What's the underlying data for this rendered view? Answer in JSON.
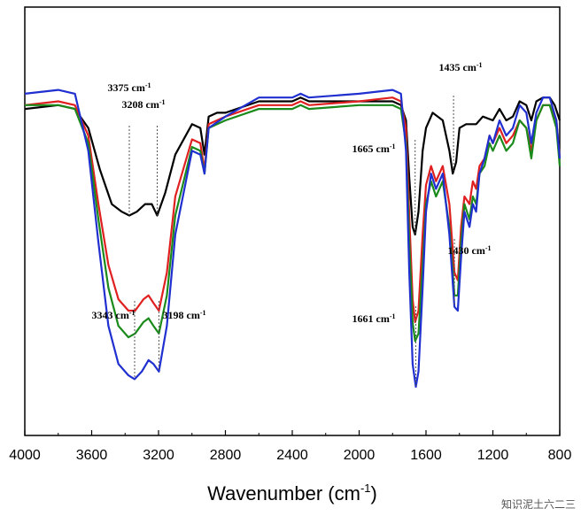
{
  "chart_data": {
    "type": "line",
    "xlabel": "Wavenumber (cm",
    "xlabel_sup": "-1",
    "xlabel_close": ")",
    "x_reversed": true,
    "xlim": [
      4000,
      800
    ],
    "xticks": [
      4000,
      3600,
      3200,
      2800,
      2400,
      2000,
      1600,
      1200,
      800
    ],
    "ylim": [
      0,
      100
    ],
    "grid": false,
    "series": [
      {
        "color": "#000000",
        "points": [
          [
            4000,
            83
          ],
          [
            3800,
            84
          ],
          [
            3700,
            83
          ],
          [
            3620,
            78
          ],
          [
            3550,
            67
          ],
          [
            3480,
            58
          ],
          [
            3420,
            56
          ],
          [
            3375,
            55
          ],
          [
            3330,
            56
          ],
          [
            3280,
            58
          ],
          [
            3240,
            58
          ],
          [
            3208,
            55
          ],
          [
            3160,
            61
          ],
          [
            3100,
            71
          ],
          [
            3000,
            79
          ],
          [
            2950,
            78
          ],
          [
            2925,
            71
          ],
          [
            2900,
            81
          ],
          [
            2850,
            82
          ],
          [
            2800,
            82
          ],
          [
            2600,
            85
          ],
          [
            2400,
            85
          ],
          [
            2350,
            86
          ],
          [
            2300,
            85
          ],
          [
            2000,
            85
          ],
          [
            1800,
            85
          ],
          [
            1750,
            84
          ],
          [
            1720,
            80
          ],
          [
            1700,
            65
          ],
          [
            1680,
            52
          ],
          [
            1665,
            50
          ],
          [
            1645,
            56
          ],
          [
            1620,
            72
          ],
          [
            1600,
            78
          ],
          [
            1560,
            82
          ],
          [
            1500,
            80
          ],
          [
            1460,
            72
          ],
          [
            1440,
            66
          ],
          [
            1420,
            69
          ],
          [
            1400,
            78
          ],
          [
            1360,
            79
          ],
          [
            1300,
            79
          ],
          [
            1260,
            81
          ],
          [
            1200,
            80
          ],
          [
            1160,
            83
          ],
          [
            1120,
            80
          ],
          [
            1080,
            81
          ],
          [
            1040,
            85
          ],
          [
            1000,
            84
          ],
          [
            970,
            80
          ],
          [
            940,
            85
          ],
          [
            900,
            86
          ],
          [
            860,
            86
          ],
          [
            830,
            84
          ],
          [
            800,
            80
          ]
        ]
      },
      {
        "color": "#e02020",
        "points": [
          [
            4000,
            84
          ],
          [
            3800,
            85
          ],
          [
            3700,
            84
          ],
          [
            3620,
            76
          ],
          [
            3560,
            58
          ],
          [
            3500,
            42
          ],
          [
            3440,
            33
          ],
          [
            3380,
            30
          ],
          [
            3340,
            30
          ],
          [
            3290,
            33
          ],
          [
            3260,
            34
          ],
          [
            3230,
            32
          ],
          [
            3198,
            30
          ],
          [
            3150,
            40
          ],
          [
            3100,
            60
          ],
          [
            3000,
            75
          ],
          [
            2950,
            74
          ],
          [
            2925,
            67
          ],
          [
            2900,
            79
          ],
          [
            2800,
            81
          ],
          [
            2600,
            84
          ],
          [
            2400,
            84
          ],
          [
            2350,
            85
          ],
          [
            2300,
            84
          ],
          [
            2000,
            85
          ],
          [
            1800,
            86
          ],
          [
            1750,
            85
          ],
          [
            1720,
            78
          ],
          [
            1700,
            55
          ],
          [
            1680,
            33
          ],
          [
            1665,
            27
          ],
          [
            1645,
            30
          ],
          [
            1620,
            50
          ],
          [
            1600,
            63
          ],
          [
            1570,
            68
          ],
          [
            1540,
            64
          ],
          [
            1500,
            68
          ],
          [
            1460,
            58
          ],
          [
            1430,
            40
          ],
          [
            1410,
            38
          ],
          [
            1390,
            52
          ],
          [
            1370,
            60
          ],
          [
            1340,
            58
          ],
          [
            1320,
            64
          ],
          [
            1300,
            62
          ],
          [
            1280,
            68
          ],
          [
            1250,
            70
          ],
          [
            1220,
            76
          ],
          [
            1200,
            74
          ],
          [
            1160,
            78
          ],
          [
            1120,
            74
          ],
          [
            1080,
            76
          ],
          [
            1040,
            80
          ],
          [
            1000,
            78
          ],
          [
            970,
            72
          ],
          [
            940,
            80
          ],
          [
            900,
            84
          ],
          [
            860,
            84
          ],
          [
            820,
            80
          ],
          [
            800,
            70
          ]
        ]
      },
      {
        "color": "#1a8a1a",
        "points": [
          [
            4000,
            84
          ],
          [
            3800,
            84
          ],
          [
            3700,
            83
          ],
          [
            3620,
            74
          ],
          [
            3560,
            54
          ],
          [
            3500,
            36
          ],
          [
            3440,
            26
          ],
          [
            3380,
            23
          ],
          [
            3340,
            24
          ],
          [
            3290,
            27
          ],
          [
            3260,
            28
          ],
          [
            3230,
            26
          ],
          [
            3198,
            24
          ],
          [
            3150,
            34
          ],
          [
            3100,
            55
          ],
          [
            3000,
            73
          ],
          [
            2950,
            72
          ],
          [
            2925,
            66
          ],
          [
            2900,
            78
          ],
          [
            2800,
            80
          ],
          [
            2600,
            83
          ],
          [
            2400,
            83
          ],
          [
            2350,
            84
          ],
          [
            2300,
            83
          ],
          [
            2000,
            84
          ],
          [
            1800,
            84
          ],
          [
            1750,
            83
          ],
          [
            1720,
            74
          ],
          [
            1700,
            48
          ],
          [
            1680,
            27
          ],
          [
            1665,
            22
          ],
          [
            1645,
            24
          ],
          [
            1620,
            42
          ],
          [
            1600,
            58
          ],
          [
            1570,
            64
          ],
          [
            1540,
            60
          ],
          [
            1500,
            64
          ],
          [
            1460,
            52
          ],
          [
            1430,
            34
          ],
          [
            1410,
            34
          ],
          [
            1390,
            48
          ],
          [
            1370,
            58
          ],
          [
            1340,
            54
          ],
          [
            1320,
            60
          ],
          [
            1300,
            58
          ],
          [
            1280,
            66
          ],
          [
            1250,
            68
          ],
          [
            1220,
            74
          ],
          [
            1200,
            72
          ],
          [
            1160,
            76
          ],
          [
            1120,
            72
          ],
          [
            1080,
            74
          ],
          [
            1040,
            80
          ],
          [
            1000,
            78
          ],
          [
            970,
            70
          ],
          [
            940,
            80
          ],
          [
            900,
            84
          ],
          [
            860,
            84
          ],
          [
            820,
            78
          ],
          [
            800,
            68
          ]
        ]
      },
      {
        "color": "#2030d0",
        "points": [
          [
            4000,
            87
          ],
          [
            3800,
            88
          ],
          [
            3700,
            87
          ],
          [
            3620,
            72
          ],
          [
            3560,
            48
          ],
          [
            3500,
            26
          ],
          [
            3440,
            16
          ],
          [
            3380,
            13
          ],
          [
            3343,
            12
          ],
          [
            3300,
            14
          ],
          [
            3260,
            17
          ],
          [
            3230,
            16
          ],
          [
            3198,
            14
          ],
          [
            3150,
            26
          ],
          [
            3100,
            50
          ],
          [
            3000,
            72
          ],
          [
            2950,
            71
          ],
          [
            2925,
            66
          ],
          [
            2900,
            78
          ],
          [
            2800,
            81
          ],
          [
            2600,
            86
          ],
          [
            2400,
            86
          ],
          [
            2350,
            87
          ],
          [
            2300,
            86
          ],
          [
            2000,
            87
          ],
          [
            1800,
            88
          ],
          [
            1750,
            87
          ],
          [
            1720,
            72
          ],
          [
            1700,
            40
          ],
          [
            1680,
            16
          ],
          [
            1661,
            10
          ],
          [
            1645,
            14
          ],
          [
            1620,
            36
          ],
          [
            1600,
            56
          ],
          [
            1570,
            66
          ],
          [
            1540,
            62
          ],
          [
            1500,
            66
          ],
          [
            1460,
            50
          ],
          [
            1430,
            31
          ],
          [
            1410,
            30
          ],
          [
            1390,
            44
          ],
          [
            1370,
            56
          ],
          [
            1340,
            52
          ],
          [
            1320,
            58
          ],
          [
            1300,
            56
          ],
          [
            1280,
            66
          ],
          [
            1250,
            70
          ],
          [
            1220,
            76
          ],
          [
            1200,
            74
          ],
          [
            1160,
            80
          ],
          [
            1120,
            76
          ],
          [
            1080,
            78
          ],
          [
            1040,
            84
          ],
          [
            1000,
            82
          ],
          [
            970,
            74
          ],
          [
            940,
            82
          ],
          [
            900,
            86
          ],
          [
            860,
            86
          ],
          [
            820,
            80
          ],
          [
            800,
            70
          ]
        ]
      }
    ],
    "annotations": [
      {
        "text": "3375 cm",
        "sup": "-1",
        "x": 3375,
        "series": 0
      },
      {
        "text": "3208 cm",
        "sup": "-1",
        "x": 3208,
        "series": 0
      },
      {
        "text": "3343 cm",
        "sup": "-1",
        "x": 3343,
        "series": 3
      },
      {
        "text": "3198 cm",
        "sup": "-1",
        "x": 3198,
        "series": 3
      },
      {
        "text": "1665 cm",
        "sup": "-1",
        "x": 1665,
        "series": 0
      },
      {
        "text": "1435 cm",
        "sup": "-1",
        "x": 1435,
        "series": 0
      },
      {
        "text": "1661 cm",
        "sup": "-1",
        "x": 1661,
        "series": 3
      },
      {
        "text": "1430 cm",
        "sup": "-1",
        "x": 1430,
        "series": 3
      }
    ]
  },
  "watermark": "知识泥土六二三"
}
